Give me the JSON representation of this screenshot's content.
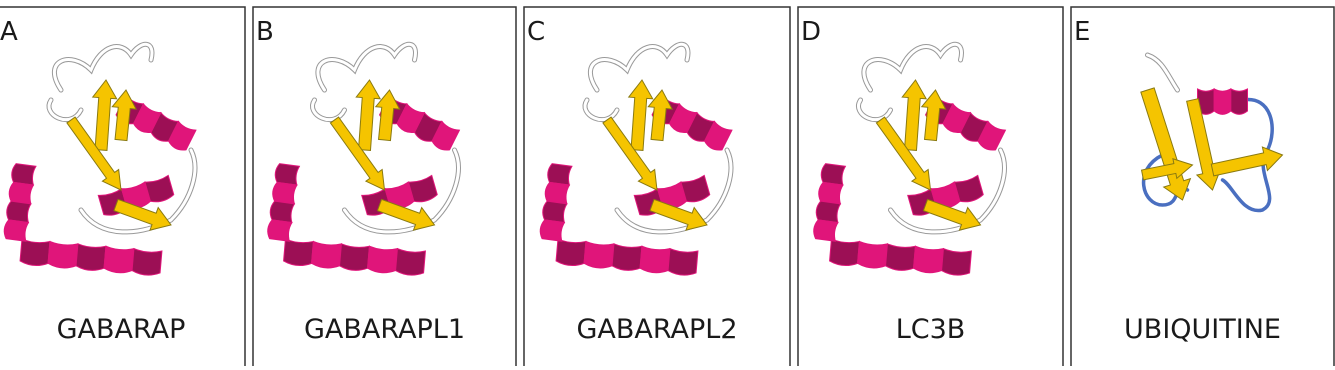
{
  "panels": [
    {
      "letter": "A",
      "name": "GABARAP"
    },
    {
      "letter": "B",
      "name": "GABARAPL1"
    },
    {
      "letter": "C",
      "name": "GABARAPL2"
    },
    {
      "letter": "D",
      "name": "LC3B"
    },
    {
      "letter": "E",
      "name": "UBIQUITINE"
    }
  ]
}
